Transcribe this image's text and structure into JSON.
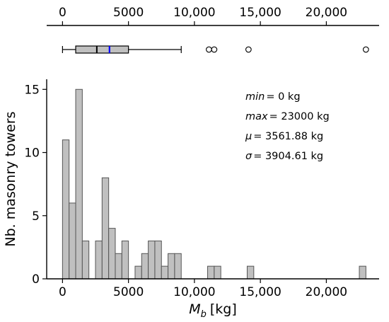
{
  "chart_data": [
    {
      "type": "box",
      "xlim": [
        -1200,
        24000
      ],
      "xticks": [
        0,
        5000,
        10000,
        15000,
        20000
      ],
      "xtick_labels": [
        "0",
        "5000",
        "10,000",
        "15,000",
        "20,000"
      ],
      "whisker_low": 0,
      "q1": 1000,
      "median": 2600,
      "mean": 3561.88,
      "q3": 5000,
      "whisker_high": 9000,
      "outliers": [
        11100,
        11500,
        14100,
        23000
      ],
      "colors": {
        "box": "#c0c0c0",
        "median": "#000000",
        "mean": "#0000ff"
      }
    },
    {
      "type": "histogram",
      "xlabel": "M",
      "xlabel_sub": "b",
      "xlabel_unit": "[kg]",
      "ylabel": "Nb. masonry towers",
      "xlim": [
        -1200,
        24000
      ],
      "ylim": [
        0,
        15.8
      ],
      "xticks": [
        0,
        5000,
        10000,
        15000,
        20000
      ],
      "xtick_labels": [
        "0",
        "5000",
        "10,000",
        "15,000",
        "20,000"
      ],
      "yticks": [
        0,
        5,
        10,
        15
      ],
      "bin_width": 500,
      "bins": [
        {
          "x0": 0,
          "count": 11
        },
        {
          "x0": 500,
          "count": 6
        },
        {
          "x0": 1000,
          "count": 15
        },
        {
          "x0": 1500,
          "count": 3
        },
        {
          "x0": 2000,
          "count": 0
        },
        {
          "x0": 2500,
          "count": 3
        },
        {
          "x0": 3000,
          "count": 8
        },
        {
          "x0": 3500,
          "count": 4
        },
        {
          "x0": 4000,
          "count": 2
        },
        {
          "x0": 4500,
          "count": 3
        },
        {
          "x0": 5000,
          "count": 0
        },
        {
          "x0": 5500,
          "count": 1
        },
        {
          "x0": 6000,
          "count": 2
        },
        {
          "x0": 6500,
          "count": 3
        },
        {
          "x0": 7000,
          "count": 3
        },
        {
          "x0": 7500,
          "count": 1
        },
        {
          "x0": 8000,
          "count": 2
        },
        {
          "x0": 8500,
          "count": 2
        },
        {
          "x0": 11000,
          "count": 1
        },
        {
          "x0": 11500,
          "count": 1
        },
        {
          "x0": 14000,
          "count": 1
        },
        {
          "x0": 22500,
          "count": 1
        }
      ],
      "stats": [
        {
          "label": "min",
          "value": "= 0 kg"
        },
        {
          "label": "max",
          "value": "= 23000 kg"
        },
        {
          "label": "μ",
          "value": "= 3561.88 kg"
        },
        {
          "label": "σ",
          "value": "= 3904.61 kg"
        }
      ],
      "colors": {
        "bar": "#c0c0c0",
        "edge": "#555555"
      }
    }
  ]
}
